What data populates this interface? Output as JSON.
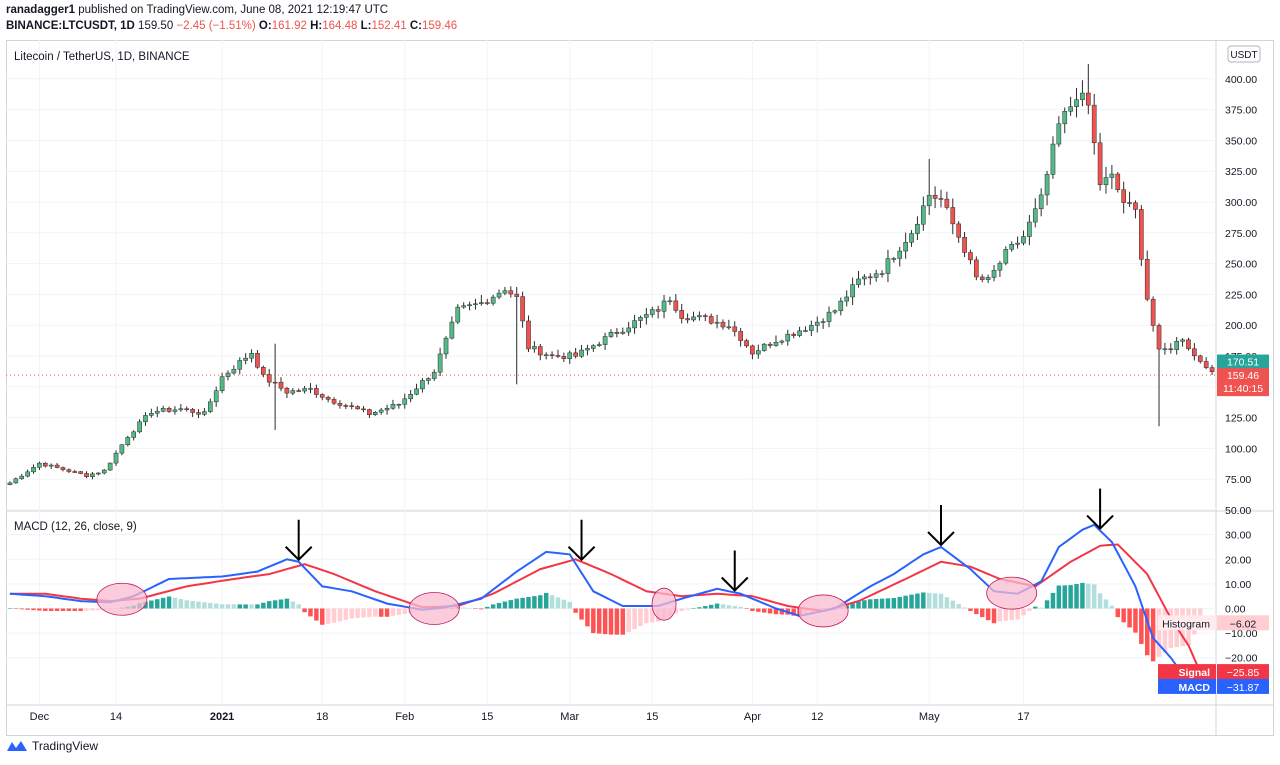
{
  "header": {
    "publisher": "ranadagger1",
    "published_text": "published on TradingView.com, June 08, 2021 12:19:47 UTC",
    "symbol": "BINANCE:LTCUSDT, 1D",
    "last": "159.50",
    "change": "−2.45 (−1.51%)",
    "open_label": "O:",
    "open": "161.92",
    "high_label": "H:",
    "high": "164.48",
    "low_label": "L:",
    "low": "152.41",
    "close_label": "C:",
    "close": "159.46"
  },
  "footer": {
    "brand": "TradingView"
  },
  "colors": {
    "up": "#26a69a",
    "up_candle": "#53b987",
    "down": "#ef5350",
    "macd": "#2962ff",
    "signal": "#f23645",
    "hist_up_strong": "#26a69a",
    "hist_up_weak": "#b2dfdb",
    "hist_down_strong": "#ff5252",
    "hist_down_weak": "#ffcdd2",
    "ellipse": "#f8bbd0",
    "grid": "#f0f3fa"
  },
  "chart_data": [
    {
      "type": "candlestick",
      "title": "Litecoin / TetherUS, 1D, BINANCE",
      "currency_badge": "USDT",
      "ylim": [
        50,
        425
      ],
      "y_ticks": [
        "50.00",
        "75.00",
        "100.00",
        "125.00",
        "150.00",
        "175.00",
        "200.00",
        "225.00",
        "250.00",
        "275.00",
        "300.00",
        "325.00",
        "350.00",
        "375.00",
        "400.00"
      ],
      "x_ticks": [
        "Dec",
        "14",
        "2021",
        "18",
        "Feb",
        "15",
        "Mar",
        "15",
        "Apr",
        "12",
        "May",
        "17"
      ],
      "date_range": [
        "2020-11-26",
        "2021-06-08"
      ],
      "price_labels": [
        {
          "value": 170.51,
          "text": "170.51",
          "color": "#26a69a"
        },
        {
          "value": 159.46,
          "text": "159.46",
          "sub": "11:40:15",
          "color": "#ef5350"
        }
      ],
      "close_keypoints": [
        [
          0,
          72
        ],
        [
          5,
          88
        ],
        [
          9,
          83
        ],
        [
          13,
          78
        ],
        [
          16,
          82
        ],
        [
          20,
          110
        ],
        [
          24,
          130
        ],
        [
          29,
          132
        ],
        [
          33,
          128
        ],
        [
          36,
          158
        ],
        [
          41,
          178
        ],
        [
          43,
          158
        ],
        [
          47,
          146
        ],
        [
          51,
          148
        ],
        [
          54,
          140
        ],
        [
          57,
          135
        ],
        [
          61,
          128
        ],
        [
          66,
          136
        ],
        [
          72,
          163
        ],
        [
          76,
          212
        ],
        [
          80,
          218
        ],
        [
          84,
          230
        ],
        [
          86,
          222
        ],
        [
          88,
          182
        ],
        [
          92,
          175
        ],
        [
          96,
          175
        ],
        [
          102,
          192
        ],
        [
          110,
          213
        ],
        [
          112,
          222
        ],
        [
          114,
          208
        ],
        [
          118,
          205
        ],
        [
          122,
          200
        ],
        [
          124,
          190
        ],
        [
          126,
          178
        ],
        [
          130,
          188
        ],
        [
          136,
          200
        ],
        [
          140,
          212
        ],
        [
          144,
          236
        ],
        [
          148,
          245
        ],
        [
          153,
          276
        ],
        [
          156,
          306
        ],
        [
          158,
          302
        ],
        [
          160,
          282
        ],
        [
          162,
          262
        ],
        [
          164,
          238
        ],
        [
          166,
          236
        ],
        [
          169,
          258
        ],
        [
          172,
          272
        ],
        [
          175,
          302
        ],
        [
          178,
          362
        ],
        [
          180,
          378
        ],
        [
          181,
          388
        ],
        [
          183,
          378
        ],
        [
          185,
          315
        ],
        [
          187,
          320
        ],
        [
          189,
          300
        ],
        [
          191,
          292
        ],
        [
          193,
          222
        ],
        [
          195,
          178
        ],
        [
          197,
          182
        ],
        [
          199,
          190
        ],
        [
          201,
          175
        ],
        [
          203,
          168
        ],
        [
          204,
          160
        ],
        [
          205,
          160
        ]
      ],
      "volatility_bumps": [
        {
          "day": 45,
          "wick": 185
        },
        {
          "day": 45,
          "wick_low": 115
        },
        {
          "day": 86,
          "wick_low": 152
        },
        {
          "day": 156,
          "wick": 335
        },
        {
          "day": 183,
          "wick": 412
        },
        {
          "day": 195,
          "wick_low": 118
        }
      ]
    },
    {
      "type": "line",
      "title": "MACD (12, 26, close, 9)",
      "ylim": [
        -38,
        38
      ],
      "y_ticks": [
        "−20.00",
        "−10.00",
        "0.00",
        "10.00",
        "20.00",
        "30.00"
      ],
      "series": [
        {
          "name": "MACD",
          "color": "#2962ff",
          "last": "−31.87",
          "keypoints": [
            [
              0,
              6
            ],
            [
              6,
              5
            ],
            [
              12,
              3
            ],
            [
              17,
              2.5
            ],
            [
              21,
              5
            ],
            [
              27,
              12
            ],
            [
              36,
              13
            ],
            [
              42,
              15
            ],
            [
              47,
              20
            ],
            [
              49,
              19
            ],
            [
              53,
              9
            ],
            [
              58,
              7
            ],
            [
              64,
              2
            ],
            [
              70,
              -0.5
            ],
            [
              74,
              0.5
            ],
            [
              80,
              4
            ],
            [
              86,
              15
            ],
            [
              91,
              23
            ],
            [
              95,
              22
            ],
            [
              99,
              7
            ],
            [
              104,
              1
            ],
            [
              110,
              1
            ],
            [
              114,
              4
            ],
            [
              120,
              8
            ],
            [
              124,
              6
            ],
            [
              130,
              0
            ],
            [
              134,
              -3
            ],
            [
              140,
              0
            ],
            [
              146,
              9
            ],
            [
              150,
              14
            ],
            [
              155,
              22
            ],
            [
              158,
              25
            ],
            [
              163,
              16
            ],
            [
              167,
              7
            ],
            [
              171,
              6
            ],
            [
              175,
              11
            ],
            [
              178,
              25
            ],
            [
              182,
              32
            ],
            [
              184,
              34
            ],
            [
              187,
              27
            ],
            [
              191,
              9
            ],
            [
              194,
              -12
            ],
            [
              197,
              -20
            ],
            [
              200,
              -30
            ],
            [
              202,
              -31.87
            ]
          ]
        },
        {
          "name": "Signal",
          "color": "#f23645",
          "last": "−25.85",
          "keypoints": [
            [
              0,
              6
            ],
            [
              6,
              6
            ],
            [
              12,
              4
            ],
            [
              17,
              3
            ],
            [
              22,
              4
            ],
            [
              30,
              9
            ],
            [
              38,
              12
            ],
            [
              44,
              14
            ],
            [
              50,
              18
            ],
            [
              55,
              14
            ],
            [
              62,
              7
            ],
            [
              70,
              0.5
            ],
            [
              76,
              1
            ],
            [
              82,
              6
            ],
            [
              90,
              16
            ],
            [
              96,
              20
            ],
            [
              102,
              14
            ],
            [
              108,
              7
            ],
            [
              114,
              5
            ],
            [
              120,
              6
            ],
            [
              126,
              5
            ],
            [
              132,
              1
            ],
            [
              138,
              -1
            ],
            [
              144,
              3
            ],
            [
              152,
              12
            ],
            [
              158,
              19
            ],
            [
              163,
              17
            ],
            [
              168,
              12
            ],
            [
              174,
              9
            ],
            [
              180,
              19
            ],
            [
              185,
              25.5
            ],
            [
              188,
              26
            ],
            [
              193,
              14
            ],
            [
              197,
              -4
            ],
            [
              200,
              -15
            ],
            [
              202,
              -25.85
            ]
          ]
        },
        {
          "name": "Histogram",
          "color": "#ef9a9a",
          "last": "−6.02"
        }
      ],
      "annotations": {
        "arrows_day": [
          49,
          97,
          123,
          158,
          185
        ],
        "ellipses_day": [
          19,
          72,
          111,
          138,
          170
        ]
      }
    }
  ]
}
